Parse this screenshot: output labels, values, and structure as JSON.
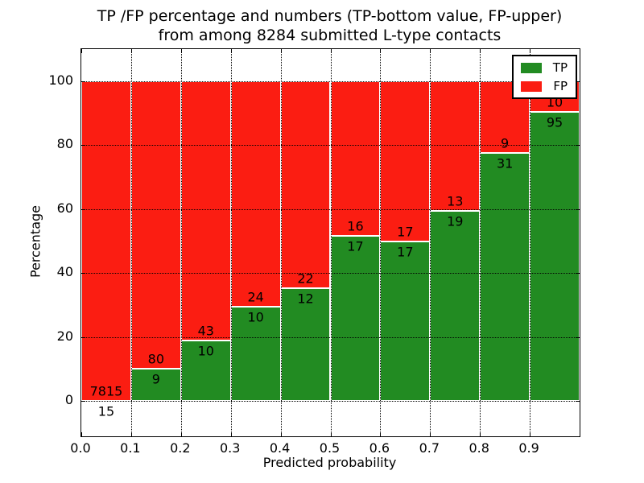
{
  "chart_data": {
    "type": "stacked_bar_percentage",
    "title_line1": "TP /FP percentage and numbers (TP-bottom value, FP-upper)",
    "title_line2": "from among 8284 submitted L-type contacts",
    "xlabel": "Predicted probability",
    "ylabel": "Percentage",
    "total_submitted": 8284,
    "bin_edges": [
      0.0,
      0.1,
      0.2,
      0.3,
      0.4,
      0.5,
      0.6,
      0.7,
      0.8,
      0.9,
      1.0
    ],
    "x_tick_labels": [
      "0.0",
      "0.1",
      "0.2",
      "0.3",
      "0.4",
      "0.5",
      "0.6",
      "0.7",
      "0.8",
      "0.9"
    ],
    "y_ticks": [
      0,
      20,
      40,
      60,
      80,
      100
    ],
    "y_tick_labels": [
      "0",
      "20",
      "40",
      "60",
      "80",
      "100"
    ],
    "xlim": [
      0.0,
      1.0
    ],
    "ylim": [
      -11,
      110
    ],
    "grid": "dotted",
    "bar_edge_color": "#ffffff",
    "series": [
      {
        "name": "TP",
        "color": "#228b22",
        "counts": [
          15,
          9,
          10,
          10,
          12,
          17,
          17,
          19,
          31,
          95
        ]
      },
      {
        "name": "FP",
        "color": "#fb1d12",
        "counts": [
          7815,
          80,
          43,
          24,
          22,
          16,
          17,
          13,
          9,
          10
        ]
      }
    ],
    "tp_percent_heights": [
      0.19,
      10.11,
      18.87,
      29.41,
      35.29,
      51.52,
      50.0,
      59.38,
      77.5,
      90.48
    ],
    "annotation_scheme": "TP count below segment boundary, FP count above segment boundary",
    "legend_position": "upper right"
  }
}
